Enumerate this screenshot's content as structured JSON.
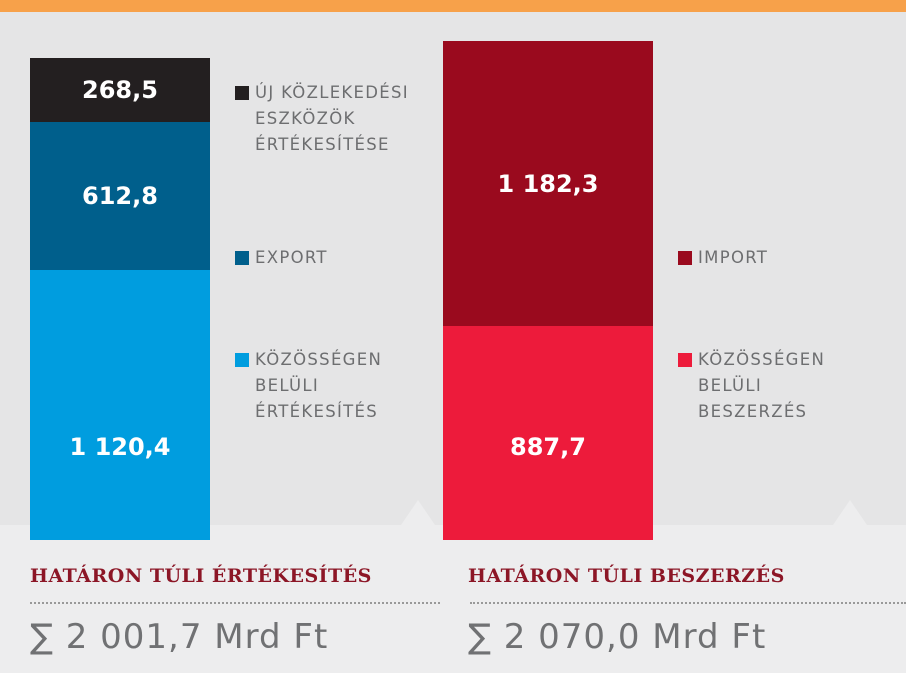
{
  "chart_data": [
    {
      "type": "stacked-bar",
      "title": "HATÁRON TÚLI ÉRTÉKESÍTÉS",
      "total": 2001.7,
      "total_label": "∑ 2 001,7 Mrd Ft",
      "series": [
        {
          "name": "KÖZÖSSÉGEN\nBELÜLI\nÉRTÉKESÍTÉS",
          "color": "#009ddf",
          "values": [
            1120.4
          ],
          "value_labels": [
            "1 120,4"
          ]
        },
        {
          "name": "EXPORT",
          "color": "#005f8c",
          "values": [
            612.8
          ],
          "value_labels": [
            "612,8"
          ]
        },
        {
          "name": "ÚJ KÖZLEKEDÉSI\nESZKÖZÖK\nÉRTÉKESÍTÉSE",
          "color": "#231f20",
          "values": [
            268.5
          ],
          "value_labels": [
            "268,5"
          ]
        }
      ]
    },
    {
      "type": "stacked-bar",
      "title": "HATÁRON TÚLI BESZERZÉS",
      "total": 2070.0,
      "total_label": "∑ 2 070,0 Mrd Ft",
      "series": [
        {
          "name": "KÖZÖSSÉGEN\nBELÜLI\nBESZERZÉS",
          "color": "#ed1b3b",
          "values": [
            887.7
          ],
          "value_labels": [
            "887,7"
          ]
        },
        {
          "name": "IMPORT",
          "color": "#9a0a1e",
          "values": [
            1182.3
          ],
          "value_labels": [
            "1 182,3"
          ]
        }
      ]
    }
  ]
}
